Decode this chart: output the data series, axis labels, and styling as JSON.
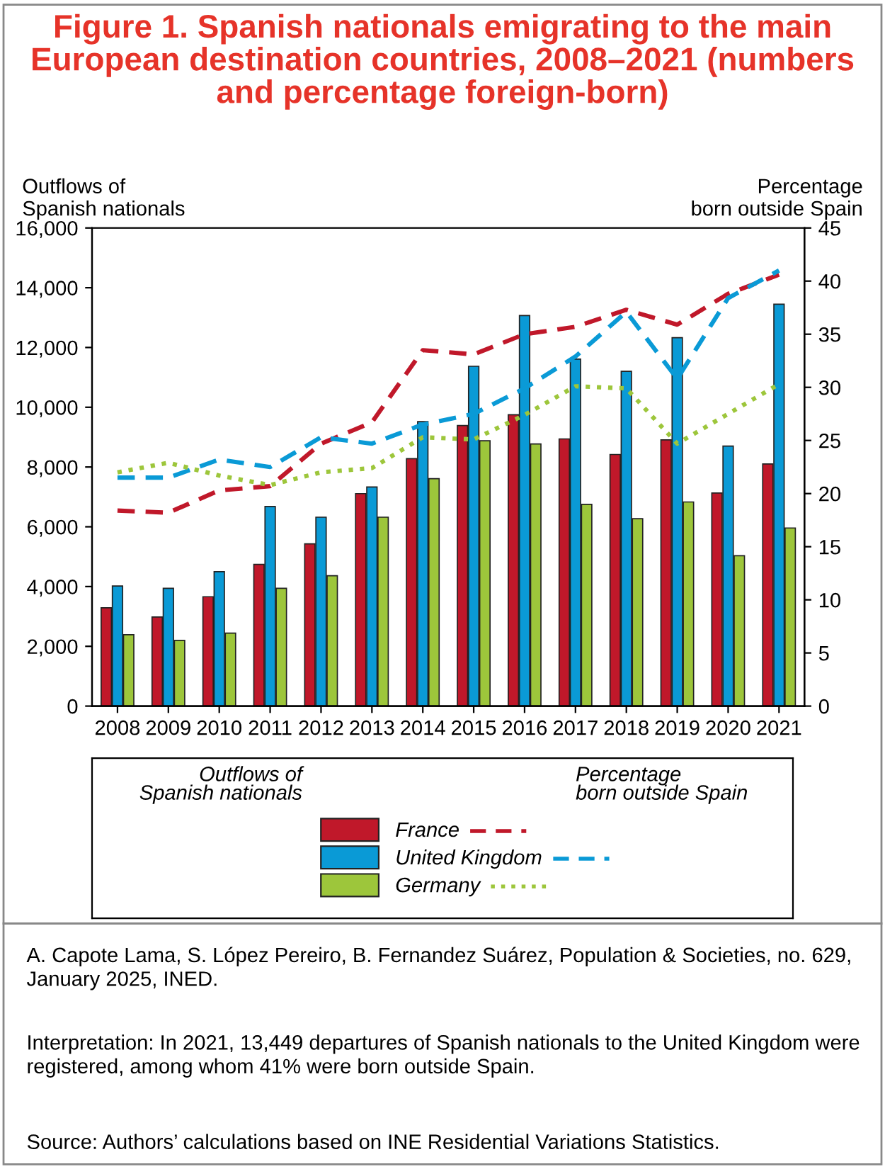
{
  "chart_data": {
    "type": "bar",
    "title": "Figure 1. Spanish nationals emigrating to the main European destination countries, 2008–2021 (numbers and percentage foreign-born)",
    "ylabel": "Outflows of\nSpanish nationals",
    "y2label": "Percentage\nborn outside Spain",
    "categories": [
      "2008",
      "2009",
      "2010",
      "2011",
      "2012",
      "2013",
      "2014",
      "2015",
      "2016",
      "2017",
      "2018",
      "2019",
      "2020",
      "2021"
    ],
    "series": [
      {
        "name": "France",
        "color": "#c0182a",
        "values": [
          3290,
          2980,
          3660,
          4740,
          5430,
          7110,
          8280,
          9390,
          9750,
          8940,
          8420,
          8910,
          7130,
          8100
        ]
      },
      {
        "name": "United Kingdom",
        "color": "#0a9ad6",
        "values": [
          4020,
          3940,
          4500,
          6680,
          6320,
          7330,
          9520,
          11370,
          13070,
          11610,
          11200,
          12330,
          8700,
          13449
        ]
      },
      {
        "name": "Germany",
        "color": "#9dc63b",
        "values": [
          2390,
          2200,
          2440,
          3940,
          4360,
          6320,
          7610,
          8880,
          8770,
          6750,
          6270,
          6830,
          5030,
          5960
        ]
      },
      {
        "type": "line",
        "axis": "y2",
        "line_style": "dashed",
        "color": "#c0182a",
        "values": [
          18.4,
          18.2,
          20.3,
          20.7,
          24.7,
          26.7,
          33.5,
          33.1,
          35.0,
          35.7,
          37.3,
          35.9,
          38.8,
          40.6
        ]
      },
      {
        "type": "line",
        "axis": "y2",
        "line_style": "dashed",
        "color": "#0a9ad6",
        "values": [
          21.5,
          21.5,
          23.2,
          22.5,
          25.3,
          24.7,
          26.5,
          27.5,
          29.9,
          32.9,
          37.1,
          30.8,
          38.4,
          41
        ]
      },
      {
        "type": "line",
        "axis": "y2",
        "line_style": "dotted",
        "color": "#9dc63b",
        "values": [
          22.0,
          22.9,
          21.7,
          20.8,
          22.0,
          22.4,
          25.3,
          25.1,
          27.4,
          30.1,
          29.9,
          24.7,
          27.5,
          30.3
        ]
      }
    ],
    "ylim": [
      0,
      16000
    ],
    "yticks": [
      0,
      {
        "value": 2000,
        "label": "2,000"
      },
      {
        "value": 4000,
        "label": "4,000"
      },
      {
        "value": 6000,
        "label": "6,000"
      },
      {
        "value": 8000,
        "label": "8,000"
      },
      {
        "value": 10000,
        "label": "10,000"
      },
      {
        "value": 12000,
        "label": "12,000"
      },
      {
        "value": 14000,
        "label": "14,000"
      },
      {
        "value": 16000,
        "label": "16,000"
      }
    ],
    "y2lim": [
      0,
      45
    ],
    "y2ticks": [
      0,
      5,
      10,
      15,
      20,
      25,
      30,
      35,
      40,
      45
    ],
    "grid": false,
    "legend": "bottom",
    "annotations": [
      "A. Capote Lama, S. López Pereiro, B. Fernandez Suárez, Population & Societies, no. 629, January 2025, INED.",
      "Interpretation: In 2021, 13,449 departures of Spanish nationals to the United Kingdom were registered, among whom 41% were born outside Spain.",
      "Source: Authors’ calculations based on INE Residential Variations Statistics."
    ]
  }
}
